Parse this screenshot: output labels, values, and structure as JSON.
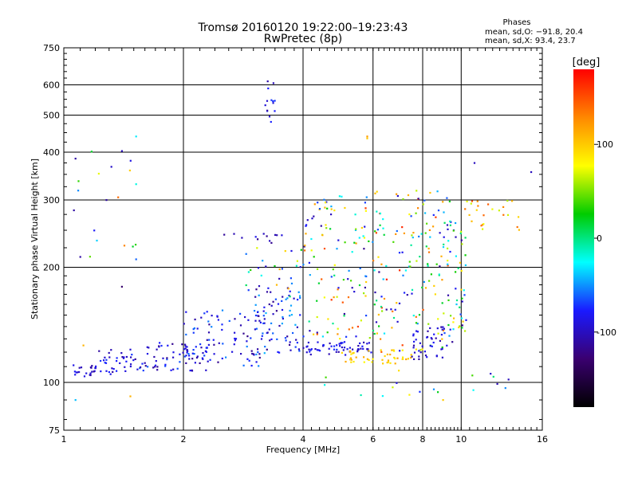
{
  "header": {
    "title_line1": "Tromsø 20160120 19:22:00–19:23:43",
    "title_line2": "RwPretec (8p)",
    "stats_title": "Phases",
    "stats_o": "mean, sd,O: −91.8, 20.4",
    "stats_x": "mean, sd,X:  93.4, 23.7"
  },
  "chart_data": {
    "type": "scatter",
    "xlabel": "Frequency [MHz]",
    "ylabel": "Stationary phase Virtual Height [km]",
    "x_scale": "log",
    "y_scale": "log",
    "xlim": [
      1,
      16
    ],
    "ylim": [
      75,
      750
    ],
    "x_ticks": [
      1,
      2,
      4,
      6,
      8,
      10,
      16
    ],
    "y_ticks": [
      75,
      100,
      200,
      300,
      400,
      500,
      600,
      750
    ],
    "grid": true,
    "colorbar": {
      "label": "[deg]",
      "range": [
        -180,
        180
      ],
      "ticks": [
        -100,
        0,
        100
      ],
      "colormap": [
        "#000000",
        "#3a0070",
        "#1a1aff",
        "#00ffff",
        "#00cc00",
        "#ffff00",
        "#ff8800",
        "#ff0000"
      ]
    },
    "clusters": [
      {
        "x_range": [
          1.03,
          1.2
        ],
        "y_range": [
          103,
          112
        ],
        "n": 20,
        "phase": [
          -115,
          -75
        ]
      },
      {
        "x_range": [
          1.2,
          1.55
        ],
        "y_range": [
          105,
          122
        ],
        "n": 40,
        "phase": [
          -115,
          -70
        ]
      },
      {
        "x_range": [
          1.55,
          2.3
        ],
        "y_range": [
          107,
          128
        ],
        "n": 70,
        "phase": [
          -120,
          -60
        ]
      },
      {
        "x_range": [
          2.0,
          3.2
        ],
        "y_range": [
          110,
          155
        ],
        "n": 80,
        "phase": [
          -120,
          -50
        ]
      },
      {
        "x_range": [
          3.0,
          4.0
        ],
        "y_range": [
          118,
          185
        ],
        "n": 80,
        "phase": [
          -120,
          -40
        ]
      },
      {
        "x_range": [
          2.8,
          4.0
        ],
        "y_range": [
          165,
          225
        ],
        "n": 25,
        "phase": [
          -110,
          120
        ]
      },
      {
        "x_range": [
          4.0,
          6.0
        ],
        "y_range": [
          118,
          128
        ],
        "n": 60,
        "phase": [
          -110,
          -70
        ]
      },
      {
        "x_range": [
          4.0,
          6.2
        ],
        "y_range": [
          130,
          310
        ],
        "n": 120,
        "phase": [
          -120,
          160
        ]
      },
      {
        "x_range": [
          5.0,
          7.5
        ],
        "y_range": [
          112,
          122
        ],
        "n": 45,
        "phase": [
          80,
          120
        ]
      },
      {
        "x_range": [
          6.0,
          9.5
        ],
        "y_range": [
          120,
          320
        ],
        "n": 150,
        "phase": [
          -120,
          170
        ]
      },
      {
        "x_range": [
          7.5,
          9.5
        ],
        "y_range": [
          115,
          140
        ],
        "n": 40,
        "phase": [
          -115,
          -80
        ]
      },
      {
        "x_range": [
          9.2,
          10.3
        ],
        "y_range": [
          135,
          270
        ],
        "n": 45,
        "phase": [
          -120,
          110
        ]
      },
      {
        "x_range": [
          10.2,
          14
        ],
        "y_range": [
          245,
          300
        ],
        "n": 25,
        "phase": [
          60,
          150
        ]
      },
      {
        "x_range": [
          3.2,
          3.4
        ],
        "y_range": [
          480,
          620
        ],
        "n": 14,
        "phase": [
          -120,
          -70
        ]
      },
      {
        "x_range": [
          2.4,
          3.6
        ],
        "y_range": [
          230,
          245
        ],
        "n": 12,
        "phase": [
          -120,
          -80
        ]
      },
      {
        "x_range": [
          1.05,
          1.55
        ],
        "y_range": [
          200,
          410
        ],
        "n": 12,
        "phase": [
          -110,
          120
        ]
      },
      {
        "x_range": [
          4.0,
          13.5
        ],
        "y_range": [
          85,
          108
        ],
        "n": 18,
        "phase": [
          -110,
          120
        ]
      }
    ],
    "extra_points": [
      {
        "x": 1.52,
        "y": 440,
        "phase": -30
      },
      {
        "x": 1.52,
        "y": 330,
        "phase": -20
      },
      {
        "x": 1.52,
        "y": 210,
        "phase": -60
      },
      {
        "x": 1.4,
        "y": 403,
        "phase": -100
      },
      {
        "x": 1.37,
        "y": 305,
        "phase": 140
      },
      {
        "x": 1.28,
        "y": 300,
        "phase": -110
      },
      {
        "x": 1.07,
        "y": 385,
        "phase": -110
      },
      {
        "x": 1.1,
        "y": 213,
        "phase": -110
      },
      {
        "x": 1.06,
        "y": 282,
        "phase": -110
      },
      {
        "x": 1.4,
        "y": 178,
        "phase": -130
      },
      {
        "x": 1.42,
        "y": 228,
        "phase": 130
      },
      {
        "x": 1.07,
        "y": 90,
        "phase": -40
      },
      {
        "x": 1.47,
        "y": 92,
        "phase": 110
      },
      {
        "x": 1.12,
        "y": 125,
        "phase": 110
      },
      {
        "x": 5.8,
        "y": 435,
        "phase": 100
      },
      {
        "x": 5.8,
        "y": 440,
        "phase": 120
      },
      {
        "x": 10.8,
        "y": 375,
        "phase": -100
      },
      {
        "x": 15.0,
        "y": 355,
        "phase": -100
      },
      {
        "x": 9.0,
        "y": 90,
        "phase": 100
      }
    ]
  }
}
